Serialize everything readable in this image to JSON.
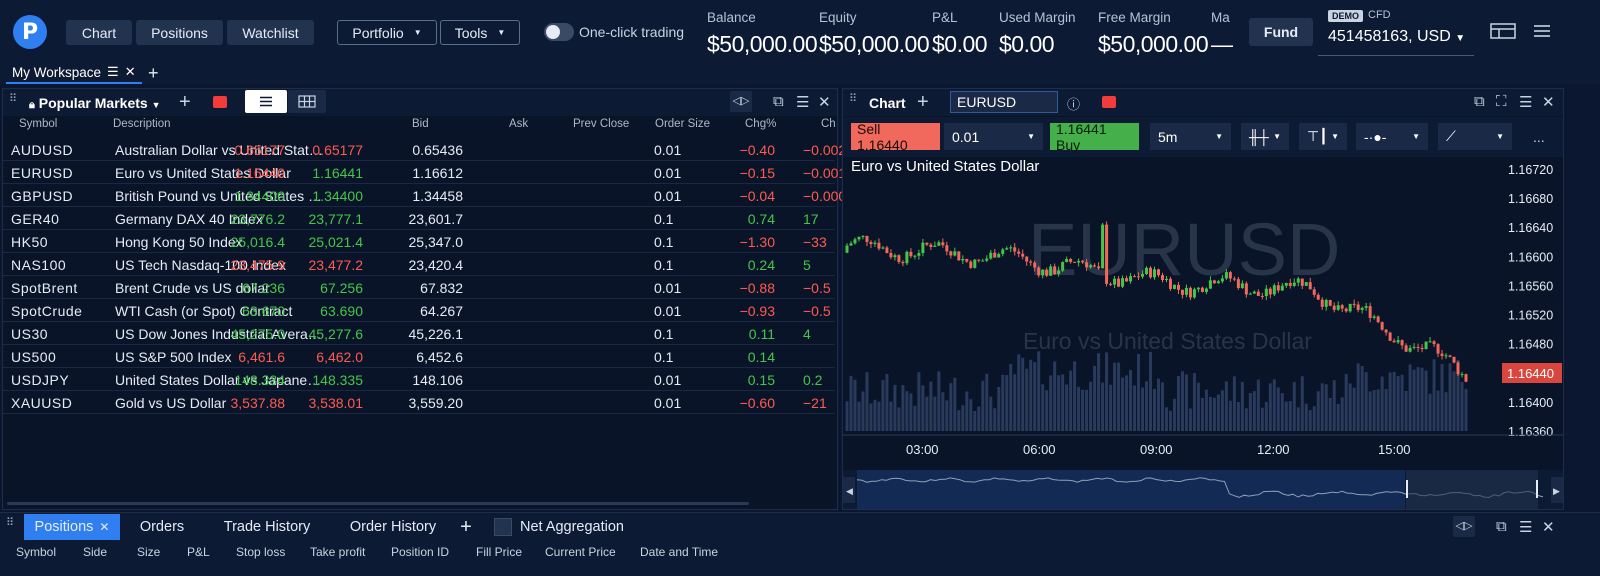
{
  "topbar": {
    "logo_letter": "P",
    "nav": [
      "Chart",
      "Positions",
      "Watchlist"
    ],
    "dropdowns": [
      "Portfolio",
      "Tools"
    ],
    "one_click_label": "One-click trading",
    "stats": [
      {
        "label": "Balance",
        "value": "$50,000.00"
      },
      {
        "label": "Equity",
        "value": "$50,000.00"
      },
      {
        "label": "P&L",
        "value": "$0.00"
      },
      {
        "label": "Used Margin",
        "value": "$0.00"
      },
      {
        "label": "Free Margin",
        "value": "$50,000.00"
      },
      {
        "label": "Ma",
        "value": "—"
      }
    ],
    "fund_label": "Fund",
    "demo_badge": "DEMO",
    "account_type": "CFD",
    "account": "451458163, USD"
  },
  "workspace": {
    "tab_label": "My Workspace"
  },
  "markets": {
    "title": "Popular Markets",
    "columns": [
      "Symbol",
      "Description",
      "Bid",
      "Ask",
      "Prev Close",
      "Order Size",
      "Chg%",
      "Ch"
    ],
    "rows": [
      {
        "symbol": "AUDUSD",
        "desc": "Australian Dollar vs United State...",
        "bid": "0.65177",
        "ask": "0.65177",
        "prev": "0.65436",
        "size": "0.01",
        "chg_pct": "−0.40",
        "chg": "−0.002",
        "bid_dir": "red",
        "ask_dir": "red",
        "chg_dir": "red"
      },
      {
        "symbol": "EURUSD",
        "desc": "Euro vs United States Dollar",
        "bid": "1.16440",
        "ask": "1.16441",
        "prev": "1.16612",
        "size": "0.01",
        "chg_pct": "−0.15",
        "chg": "−0.001",
        "bid_dir": "red",
        "ask_dir": "green",
        "chg_dir": "red"
      },
      {
        "symbol": "GBPUSD",
        "desc": "British Pound vs United States D...",
        "bid": "1.34400",
        "ask": "1.34400",
        "prev": "1.34458",
        "size": "0.01",
        "chg_pct": "−0.04",
        "chg": "−0.000",
        "bid_dir": "green",
        "ask_dir": "green",
        "chg_dir": "red"
      },
      {
        "symbol": "GER40",
        "desc": "Germany DAX 40 Index",
        "bid": "23,776.2",
        "ask": "23,777.1",
        "prev": "23,601.7",
        "size": "0.1",
        "chg_pct": "0.74",
        "chg": "17",
        "bid_dir": "green",
        "ask_dir": "green",
        "chg_dir": "green"
      },
      {
        "symbol": "HK50",
        "desc": "Hong Kong 50 Index",
        "bid": "25,016.4",
        "ask": "25,021.4",
        "prev": "25,347.0",
        "size": "0.1",
        "chg_pct": "−1.30",
        "chg": "−33",
        "bid_dir": "green",
        "ask_dir": "green",
        "chg_dir": "red"
      },
      {
        "symbol": "NAS100",
        "desc": "US Tech Nasdaq-100 Index",
        "bid": "23,475.9",
        "ask": "23,477.2",
        "prev": "23,420.4",
        "size": "0.1",
        "chg_pct": "0.24",
        "chg": "5",
        "bid_dir": "red",
        "ask_dir": "red",
        "chg_dir": "green"
      },
      {
        "symbol": "SpotBrent",
        "desc": "Brent Crude vs US dollar",
        "bid": "67.236",
        "ask": "67.256",
        "prev": "67.832",
        "size": "0.01",
        "chg_pct": "−0.88",
        "chg": "−0.5",
        "bid_dir": "green",
        "ask_dir": "green",
        "chg_dir": "red"
      },
      {
        "symbol": "SpotCrude",
        "desc": "WTI Cash (or Spot) Contract",
        "bid": "63.670",
        "ask": "63.690",
        "prev": "64.267",
        "size": "0.01",
        "chg_pct": "−0.93",
        "chg": "−0.5",
        "bid_dir": "green",
        "ask_dir": "green",
        "chg_dir": "red"
      },
      {
        "symbol": "US30",
        "desc": "US Dow Jones Industrial Average...",
        "bid": "45,275.0",
        "ask": "45,277.6",
        "prev": "45,226.1",
        "size": "0.1",
        "chg_pct": "0.11",
        "chg": "4",
        "bid_dir": "green",
        "ask_dir": "green",
        "chg_dir": "green"
      },
      {
        "symbol": "US500",
        "desc": "US S&P 500 Index",
        "bid": "6,461.6",
        "ask": "6,462.0",
        "prev": "6,452.6",
        "size": "0.1",
        "chg_pct": "0.14",
        "chg": "",
        "bid_dir": "red",
        "ask_dir": "red",
        "chg_dir": "green"
      },
      {
        "symbol": "USDJPY",
        "desc": "United States Dollar vs Japanese ...",
        "bid": "148.334",
        "ask": "148.335",
        "prev": "148.106",
        "size": "0.01",
        "chg_pct": "0.15",
        "chg": "0.2",
        "bid_dir": "green",
        "ask_dir": "green",
        "chg_dir": "green"
      },
      {
        "symbol": "XAUUSD",
        "desc": "Gold vs US Dollar",
        "bid": "3,537.88",
        "ask": "3,538.01",
        "prev": "3,559.20",
        "size": "0.01",
        "chg_pct": "−0.60",
        "chg": "−21",
        "bid_dir": "red",
        "ask_dir": "red",
        "chg_dir": "red"
      }
    ]
  },
  "chart": {
    "panel_title": "Chart",
    "symbol": "EURUSD",
    "sell_label": "Sell 1.16440",
    "buy_label": "1.16441 Buy",
    "quantity": "0.01",
    "interval": "5m",
    "more": "...",
    "title": "Euro vs United States Dollar",
    "watermark_symbol": "EURUSD",
    "watermark_desc": "Euro vs United States Dollar",
    "current_price": "1.16440",
    "price_ticks": [
      "1.16720",
      "1.16680",
      "1.16640",
      "1.16600",
      "1.16560",
      "1.16520",
      "1.16480",
      "1.16440",
      "1.16400",
      "1.16360"
    ],
    "time_ticks": [
      "03:00",
      "06:00",
      "09:00",
      "12:00",
      "15:00"
    ]
  },
  "chart_data": {
    "type": "line",
    "title": "Euro vs United States Dollar",
    "x": [
      "03:00",
      "06:00",
      "09:00",
      "12:00",
      "15:00"
    ],
    "ylim": [
      1.1636,
      1.1672
    ],
    "series": [
      {
        "name": "EURUSD",
        "values": [
          1.16615,
          1.166,
          1.16565,
          1.16555,
          1.1644
        ]
      }
    ]
  },
  "bottom": {
    "tabs": [
      "Positions",
      "Orders",
      "Trade History",
      "Order History"
    ],
    "net_aggregation": "Net Aggregation",
    "columns": [
      "Symbol",
      "Side",
      "Size",
      "P&L",
      "Stop loss",
      "Take profit",
      "Position ID",
      "Fill Price",
      "Current Price",
      "Date and Time"
    ]
  },
  "colors": {
    "accent": "#2f7ff0",
    "down": "#ff5b50",
    "up": "#45c64a",
    "background": "#091428"
  }
}
